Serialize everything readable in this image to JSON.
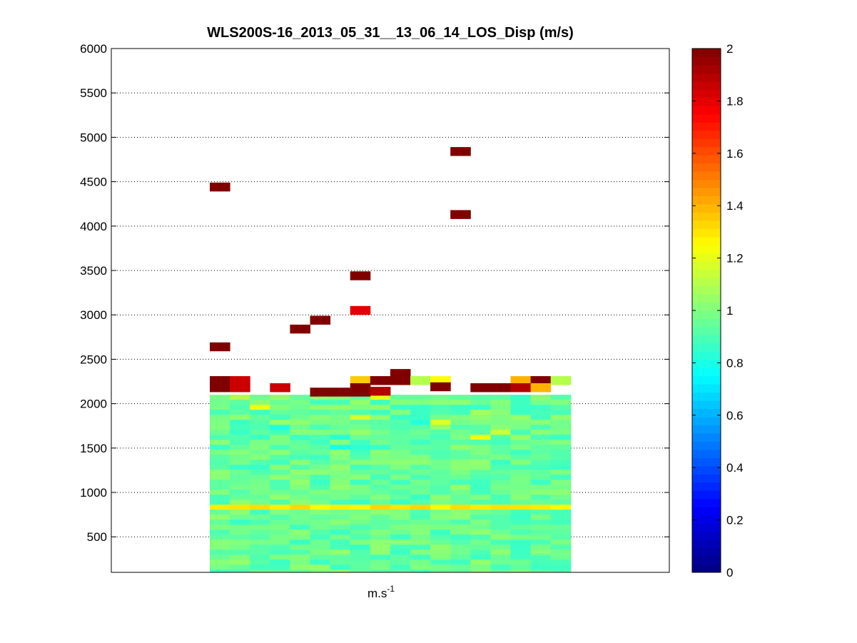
{
  "chart_data": {
    "type": "heatmap",
    "title": "WLS200S-16_2013_05_31__13_06_14_LOS_Disp (m/s)",
    "xlabel_base": "m.s",
    "xlabel_sup": "-1",
    "ylim": [
      100,
      6000
    ],
    "yticks": [
      "500",
      "1000",
      "1500",
      "2000",
      "2500",
      "3000",
      "3500",
      "4000",
      "4500",
      "5000",
      "5500",
      "6000"
    ],
    "grid": "horizontal dotted",
    "colormap": "jet",
    "clim": [
      0,
      2
    ],
    "colorbar_ticks": [
      "0",
      "0.2",
      "0.4",
      "0.6",
      "0.8",
      "1",
      "1.2",
      "1.4",
      "1.6",
      "1.8",
      "2"
    ],
    "columns": 18,
    "lower_block": {
      "columns": [
        0,
        17
      ],
      "altitude_range": [
        100,
        2100
      ],
      "typical_value": 0.95,
      "bands": [
        {
          "altitude": 840,
          "value": 1.3
        },
        {
          "altitude": 640,
          "value": 1.15
        },
        {
          "altitude": 300,
          "value": 1.15
        }
      ]
    },
    "points": [
      {
        "column": 0,
        "altitude": 4440,
        "value": 2.0
      },
      {
        "column": 0,
        "altitude": 2640,
        "value": 2.0
      },
      {
        "column": 0,
        "altitude": 2260,
        "value": 2.0
      },
      {
        "column": 0,
        "altitude": 2180,
        "value": 2.0
      },
      {
        "column": 1,
        "altitude": 2260,
        "value": 1.85
      },
      {
        "column": 1,
        "altitude": 2180,
        "value": 1.85
      },
      {
        "column": 3,
        "altitude": 2180,
        "value": 1.85
      },
      {
        "column": 4,
        "altitude": 2840,
        "value": 2.0
      },
      {
        "column": 5,
        "altitude": 2940,
        "value": 2.0
      },
      {
        "column": 5,
        "altitude": 2130,
        "value": 2.0
      },
      {
        "column": 6,
        "altitude": 2130,
        "value": 2.0
      },
      {
        "column": 7,
        "altitude": 3440,
        "value": 2.0
      },
      {
        "column": 7,
        "altitude": 3050,
        "value": 1.8
      },
      {
        "column": 7,
        "altitude": 2260,
        "value": 1.35
      },
      {
        "column": 7,
        "altitude": 2180,
        "value": 2.0
      },
      {
        "column": 7,
        "altitude": 2130,
        "value": 2.0
      },
      {
        "column": 8,
        "altitude": 2260,
        "value": 2.0
      },
      {
        "column": 8,
        "altitude": 2140,
        "value": 1.9
      },
      {
        "column": 9,
        "altitude": 2340,
        "value": 2.0
      },
      {
        "column": 9,
        "altitude": 2260,
        "value": 2.0
      },
      {
        "column": 10,
        "altitude": 2260,
        "value": 1.1
      },
      {
        "column": 11,
        "altitude": 2260,
        "value": 1.25
      },
      {
        "column": 11,
        "altitude": 2190,
        "value": 2.0
      },
      {
        "column": 12,
        "altitude": 4840,
        "value": 2.0
      },
      {
        "column": 12,
        "altitude": 4130,
        "value": 2.0
      },
      {
        "column": 13,
        "altitude": 2180,
        "value": 2.0
      },
      {
        "column": 14,
        "altitude": 2180,
        "value": 2.0
      },
      {
        "column": 15,
        "altitude": 2260,
        "value": 1.4
      },
      {
        "column": 15,
        "altitude": 2180,
        "value": 1.9
      },
      {
        "column": 16,
        "altitude": 2260,
        "value": 2.0
      },
      {
        "column": 16,
        "altitude": 2180,
        "value": 1.4
      },
      {
        "column": 17,
        "altitude": 2260,
        "value": 1.1
      }
    ]
  }
}
